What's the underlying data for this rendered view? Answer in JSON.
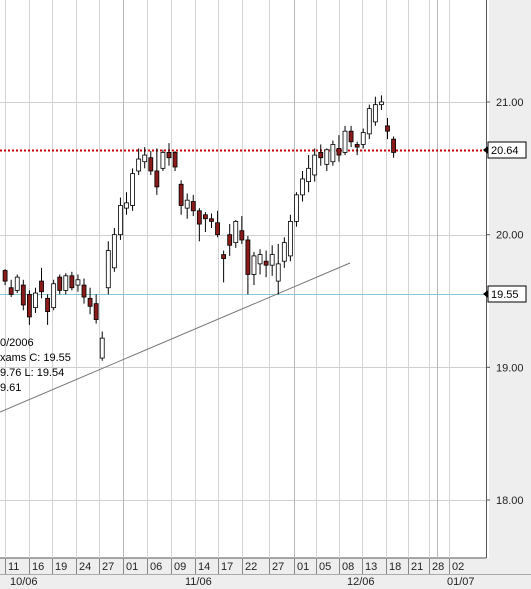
{
  "chart_data": {
    "type": "candlestick",
    "y_axis": {
      "ticks": [
        18.0,
        19.0,
        20.0,
        21.0
      ],
      "tick_labels": [
        "18.00",
        "19.00",
        "20.00",
        "21.00"
      ],
      "range": [
        17.5,
        21.75
      ]
    },
    "x_axis": {
      "date_labels": [
        "11",
        "16",
        "19",
        "24",
        "27",
        "01",
        "06",
        "09",
        "14",
        "17",
        "22",
        "27",
        "01",
        "05",
        "08",
        "13",
        "18",
        "21",
        "28",
        "02"
      ],
      "month_labels": [
        "10/06",
        "11/06",
        "12/06",
        "01/07"
      ]
    },
    "reference_lines": [
      {
        "value": 20.64,
        "label": "20.64",
        "style": "dotted",
        "color": "#cc0000"
      },
      {
        "value": 19.55,
        "label": "19.55",
        "style": "solid",
        "color": "#88c8d8"
      }
    ],
    "trendline": {
      "from": [
        "10/09/2006",
        18.67
      ],
      "to": [
        "12/11/2006",
        19.8
      ],
      "color": "#777777"
    },
    "info_panel": [
      "0/2006",
      "xams  C: 19.55",
      "9.76  L: 19.54",
      "9.61"
    ],
    "colors": {
      "up": "#ffffff",
      "down": "#8b1a1a",
      "wick": "#000000",
      "grid": "#cccccc",
      "axis_bg": "#eeeeee"
    },
    "candles": [
      [
        "10/10/2006",
        19.73,
        19.74,
        19.62,
        19.65
      ],
      [
        "10/11/2006",
        19.6,
        19.66,
        19.53,
        19.55
      ],
      [
        "10/12/2006",
        19.58,
        19.7,
        19.56,
        19.68
      ],
      [
        "10/13/2006",
        19.62,
        19.66,
        19.43,
        19.47
      ],
      [
        "10/16/2006",
        19.55,
        19.58,
        19.32,
        19.38
      ],
      [
        "10/17/2006",
        19.45,
        19.6,
        19.41,
        19.56
      ],
      [
        "10/18/2006",
        19.65,
        19.75,
        19.52,
        19.57
      ],
      [
        "10/19/2006",
        19.52,
        19.55,
        19.32,
        19.42
      ],
      [
        "10/20/2006",
        19.45,
        19.66,
        19.43,
        19.63
      ],
      [
        "10/23/2006",
        19.68,
        19.7,
        19.55,
        19.58
      ],
      [
        "10/24/2006",
        19.58,
        19.71,
        19.55,
        19.69
      ],
      [
        "10/25/2006",
        19.69,
        19.72,
        19.58,
        19.6
      ],
      [
        "10/26/2006",
        19.62,
        19.7,
        19.57,
        19.66
      ],
      [
        "10/27/2006",
        19.62,
        19.67,
        19.48,
        19.53
      ],
      [
        "10/30/2006",
        19.52,
        19.6,
        19.4,
        19.46
      ],
      [
        "10/31/2006",
        19.48,
        19.55,
        19.33,
        19.36
      ],
      [
        "11/01/2006",
        19.07,
        19.27,
        19.05,
        19.22
      ],
      [
        "11/02/2006",
        19.6,
        19.95,
        19.55,
        19.88
      ],
      [
        "11/03/2006",
        19.75,
        20.05,
        19.72,
        20.0
      ],
      [
        "11/06/2006",
        20.0,
        20.28,
        19.96,
        20.22
      ],
      [
        "11/07/2006",
        20.2,
        20.32,
        20.15,
        20.24
      ],
      [
        "11/08/2006",
        20.22,
        20.5,
        20.18,
        20.46
      ],
      [
        "11/09/2006",
        20.48,
        20.65,
        20.45,
        20.57
      ],
      [
        "11/10/2006",
        20.55,
        20.66,
        20.5,
        20.6
      ],
      [
        "11/13/2006",
        20.58,
        20.63,
        20.45,
        20.48
      ],
      [
        "11/14/2006",
        20.48,
        20.65,
        20.3,
        20.36
      ],
      [
        "11/15/2006",
        20.5,
        20.64,
        20.48,
        20.62
      ],
      [
        "11/16/2006",
        20.62,
        20.69,
        20.52,
        20.58
      ],
      [
        "11/17/2006",
        20.62,
        20.63,
        20.48,
        20.51
      ],
      [
        "11/20/2006",
        20.38,
        20.41,
        20.15,
        20.22
      ],
      [
        "11/21/2006",
        20.2,
        20.31,
        20.12,
        20.26
      ],
      [
        "11/22/2006",
        20.25,
        20.3,
        20.14,
        20.18
      ],
      [
        "11/24/2006",
        20.18,
        20.2,
        19.95,
        20.08
      ],
      [
        "11/27/2006",
        20.15,
        20.17,
        20.02,
        20.12
      ],
      [
        "11/28/2006",
        20.12,
        20.16,
        20.05,
        20.1
      ],
      [
        "11/29/2006",
        20.09,
        20.18,
        19.98,
        20.0
      ],
      [
        "11/30/2006",
        19.85,
        19.88,
        19.64,
        19.82
      ],
      [
        "12/01/2006",
        20.0,
        20.08,
        19.84,
        19.92
      ],
      [
        "12/04/2006",
        19.94,
        20.11,
        19.9,
        20.1
      ],
      [
        "12/05/2006",
        20.03,
        20.14,
        19.93,
        19.96
      ],
      [
        "12/06/2006",
        19.96,
        19.99,
        19.55,
        19.7
      ],
      [
        "12/07/2006",
        19.7,
        19.87,
        19.62,
        19.84
      ],
      [
        "12/08/2006",
        19.78,
        19.89,
        19.7,
        19.85
      ],
      [
        "12/11/2006",
        19.8,
        19.88,
        19.68,
        19.77
      ],
      [
        "12/12/2006",
        19.77,
        19.92,
        19.69,
        19.85
      ],
      [
        "12/13/2006",
        19.65,
        19.93,
        19.55,
        19.78
      ],
      [
        "12/14/2006",
        19.8,
        19.98,
        19.75,
        19.94
      ],
      [
        "12/15/2006",
        19.84,
        20.15,
        19.8,
        20.1
      ],
      [
        "12/18/2006",
        20.1,
        20.32,
        20.06,
        20.3
      ],
      [
        "12/19/2006",
        20.3,
        20.48,
        20.25,
        20.42
      ],
      [
        "12/20/2006",
        20.4,
        20.6,
        20.32,
        20.5
      ],
      [
        "12/21/2006",
        20.45,
        20.65,
        20.4,
        20.6
      ],
      [
        "12/22/2006",
        20.62,
        20.68,
        20.52,
        20.58
      ],
      [
        "12/26/2006",
        20.53,
        20.65,
        20.48,
        20.64
      ],
      [
        "12/27/2006",
        20.55,
        20.71,
        20.52,
        20.68
      ],
      [
        "12/28/2006",
        20.65,
        20.75,
        20.55,
        20.6
      ],
      [
        "12/29/2006",
        20.62,
        20.82,
        20.6,
        20.78
      ],
      [
        "01/02/2007",
        20.78,
        20.82,
        20.66,
        20.7
      ],
      [
        "01/03/2007",
        20.68,
        20.7,
        20.6,
        20.66
      ],
      [
        "01/04/2007",
        20.68,
        20.8,
        20.65,
        20.77
      ],
      [
        "01/05/2007",
        20.76,
        20.98,
        20.72,
        20.95
      ],
      [
        "01/08/2007",
        20.85,
        21.04,
        20.82,
        20.98
      ],
      [
        "01/09/2007",
        20.98,
        21.05,
        20.94,
        21.0
      ],
      [
        "01/10/2007",
        20.82,
        20.88,
        20.72,
        20.78
      ],
      [
        "01/11/2007",
        20.72,
        20.74,
        20.58,
        20.62
      ]
    ]
  }
}
